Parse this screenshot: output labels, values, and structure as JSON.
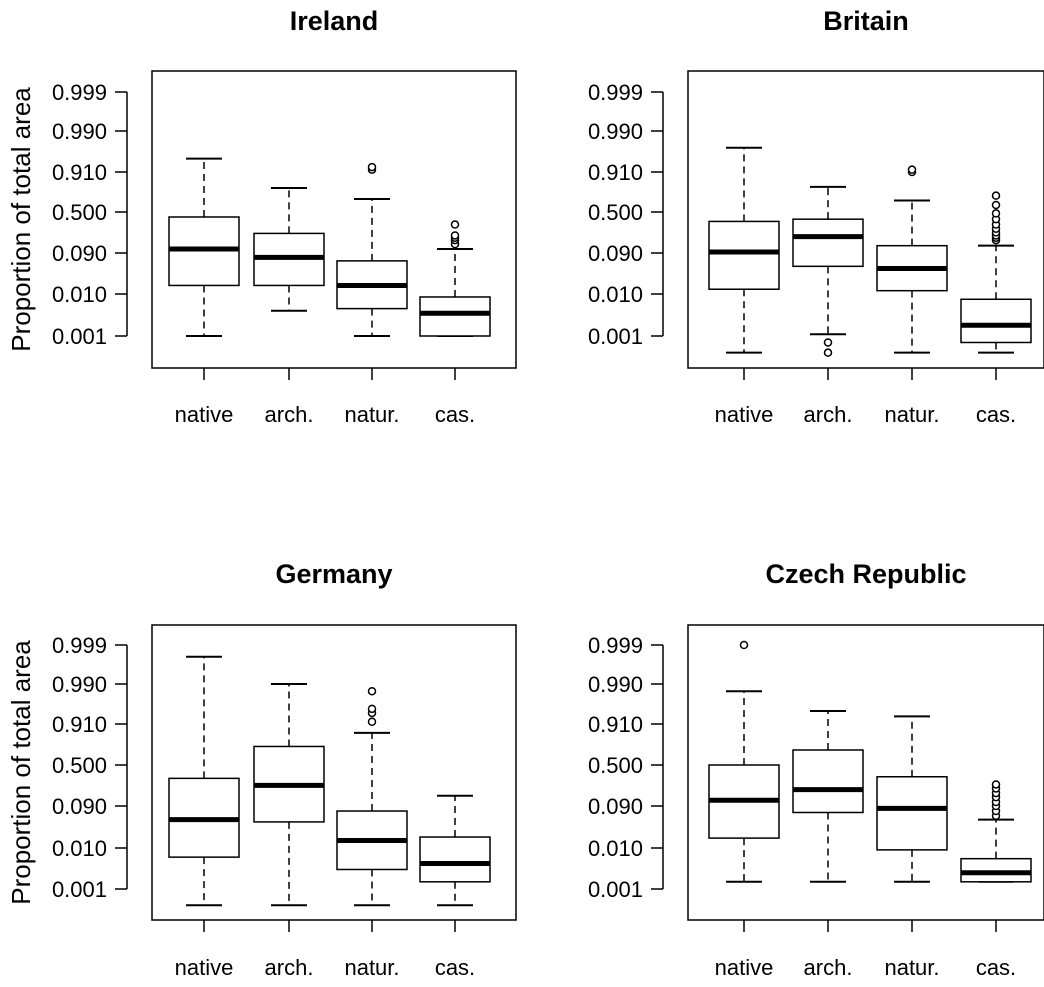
{
  "chart_data": [
    {
      "type": "boxplot",
      "title": "Ireland",
      "ylabel": "Proportion of total area",
      "ytick_labels": [
        "0.999",
        "0.990",
        "0.910",
        "0.500",
        "0.090",
        "0.010",
        "0.001"
      ],
      "categories": [
        "native",
        "arch.",
        "natur.",
        "cas."
      ],
      "boxes": [
        {
          "category": "native",
          "whisker_low": 0.001,
          "q1": 0.016,
          "median": 0.11,
          "q3": 0.43,
          "whisker_high": 0.955,
          "outliers": []
        },
        {
          "category": "arch.",
          "whisker_low": 0.004,
          "q1": 0.016,
          "median": 0.072,
          "q3": 0.23,
          "whisker_high": 0.8,
          "outliers": []
        },
        {
          "category": "natur.",
          "whisker_low": 0.001,
          "q1": 0.0045,
          "median": 0.016,
          "q3": 0.06,
          "whisker_high": 0.68,
          "outliers": [
            0.92,
            0.93
          ]
        },
        {
          "category": "cas.",
          "whisker_low": 0.001,
          "q1": 0.001,
          "median": 0.0035,
          "q3": 0.0085,
          "whisker_high": 0.11,
          "outliers": [
            0.14,
            0.17,
            0.19,
            0.21,
            0.33
          ]
        }
      ]
    },
    {
      "type": "boxplot",
      "title": "Britain",
      "ylabel": "",
      "ytick_labels": [
        "0.999",
        "0.990",
        "0.910",
        "0.500",
        "0.090",
        "0.010",
        "0.001"
      ],
      "categories": [
        "native",
        "arch.",
        "natur.",
        "cas."
      ],
      "boxes": [
        {
          "category": "native",
          "whisker_low": 0.0004,
          "q1": 0.013,
          "median": 0.095,
          "q3": 0.37,
          "whisker_high": 0.975,
          "outliers": []
        },
        {
          "category": "arch.",
          "whisker_low": 0.0011,
          "q1": 0.045,
          "median": 0.2,
          "q3": 0.4,
          "whisker_high": 0.81,
          "outliers": [
            0.0004,
            0.0007
          ]
        },
        {
          "category": "natur.",
          "whisker_low": 0.0004,
          "q1": 0.012,
          "median": 0.04,
          "q3": 0.13,
          "whisker_high": 0.66,
          "outliers": [
            0.91,
            0.92
          ]
        },
        {
          "category": "cas.",
          "whisker_low": 0.0004,
          "q1": 0.0007,
          "median": 0.0018,
          "q3": 0.0075,
          "whisker_high": 0.13,
          "outliers": [
            0.17,
            0.19,
            0.21,
            0.24,
            0.28,
            0.33,
            0.4,
            0.48,
            0.6,
            0.72
          ]
        }
      ]
    },
    {
      "type": "boxplot",
      "title": "Germany",
      "ylabel": "Proportion of total area",
      "ytick_labels": [
        "0.999",
        "0.990",
        "0.910",
        "0.500",
        "0.090",
        "0.010",
        "0.001"
      ],
      "categories": [
        "native",
        "arch.",
        "natur.",
        "cas."
      ],
      "boxes": [
        {
          "category": "native",
          "whisker_low": 0.0004,
          "q1": 0.006,
          "median": 0.045,
          "q3": 0.32,
          "whisker_high": 0.998,
          "outliers": []
        },
        {
          "category": "arch.",
          "whisker_low": 0.0004,
          "q1": 0.04,
          "median": 0.24,
          "q3": 0.74,
          "whisker_high": 0.99,
          "outliers": []
        },
        {
          "category": "natur.",
          "whisker_low": 0.0004,
          "q1": 0.003,
          "median": 0.015,
          "q3": 0.07,
          "whisker_high": 0.86,
          "outliers": [
            0.92,
            0.95,
            0.96,
            0.985
          ]
        },
        {
          "category": "cas.",
          "whisker_low": 0.0004,
          "q1": 0.0015,
          "median": 0.0042,
          "q3": 0.018,
          "whisker_high": 0.15,
          "outliers": []
        }
      ]
    },
    {
      "type": "boxplot",
      "title": "Czech Republic",
      "ylabel": "",
      "ytick_labels": [
        "0.999",
        "0.990",
        "0.910",
        "0.500",
        "0.090",
        "0.010",
        "0.001"
      ],
      "categories": [
        "native",
        "arch.",
        "natur.",
        "cas."
      ],
      "boxes": [
        {
          "category": "native",
          "whisker_low": 0.0015,
          "q1": 0.017,
          "median": 0.12,
          "q3": 0.5,
          "whisker_high": 0.985,
          "outliers": [
            0.999
          ]
        },
        {
          "category": "arch.",
          "whisker_low": 0.0015,
          "q1": 0.065,
          "median": 0.2,
          "q3": 0.7,
          "whisker_high": 0.955,
          "outliers": []
        },
        {
          "category": "natur.",
          "whisker_low": 0.0015,
          "q1": 0.009,
          "median": 0.08,
          "q3": 0.34,
          "whisker_high": 0.94,
          "outliers": []
        },
        {
          "category": "cas.",
          "whisker_low": 0.0015,
          "q1": 0.0015,
          "median": 0.0025,
          "q3": 0.0055,
          "whisker_high": 0.045,
          "outliers": [
            0.055,
            0.07,
            0.09,
            0.11,
            0.14,
            0.17,
            0.21,
            0.25
          ]
        }
      ]
    }
  ]
}
